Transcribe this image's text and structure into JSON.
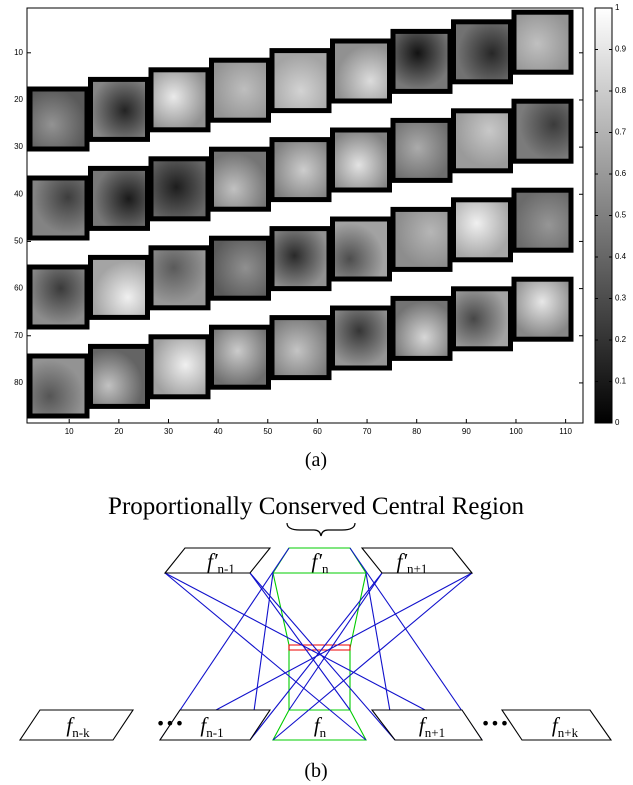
{
  "panel_a": {
    "x_axis": {
      "xlim": [
        1.5,
        113.5
      ],
      "ticks": [
        10,
        20,
        30,
        40,
        50,
        60,
        70,
        80,
        90,
        100,
        110
      ]
    },
    "y_axis": {
      "ylim": [
        0.5,
        88.5
      ],
      "ticks": [
        10,
        20,
        30,
        40,
        50,
        60,
        70,
        80
      ]
    },
    "colorbar": {
      "lim": [
        0,
        1
      ],
      "ticks": [
        0,
        0.1,
        0.2,
        0.3,
        0.4,
        0.5,
        0.6,
        0.7,
        0.8,
        0.9,
        1
      ]
    },
    "caption": "(a)"
  },
  "panel_b": {
    "title": "Proportionally Conserved Central Region",
    "top_frames": [
      {
        "base": "f′",
        "sub": "n-1"
      },
      {
        "base": "f′",
        "sub": "n"
      },
      {
        "base": "f′",
        "sub": "n+1"
      }
    ],
    "bottom_frames": [
      {
        "base": "f",
        "sub": "n-k"
      },
      {
        "base": "f",
        "sub": "n-1"
      },
      {
        "base": "f",
        "sub": "n"
      },
      {
        "base": "f",
        "sub": "n+1"
      },
      {
        "base": "f",
        "sub": "n+k"
      }
    ],
    "ellipsis": [
      "•••",
      "•••"
    ],
    "caption": "(b)"
  }
}
